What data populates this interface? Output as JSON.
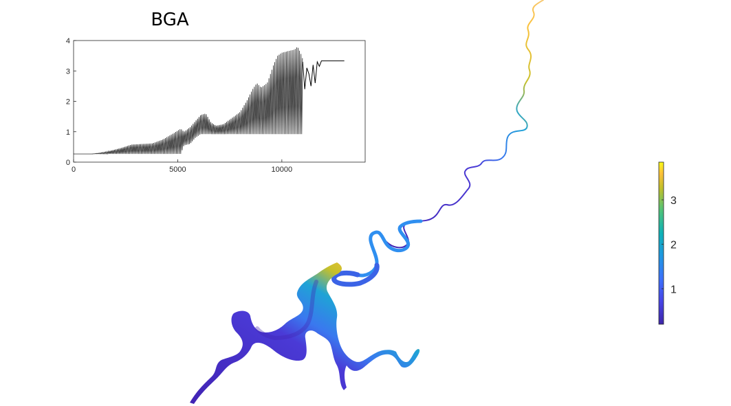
{
  "chart_data": [
    {
      "type": "line",
      "title": "BGA",
      "xlabel": "",
      "ylabel": "",
      "xlim": [
        0,
        14000
      ],
      "ylim": [
        0,
        4
      ],
      "xticks": [
        0,
        5000,
        10000
      ],
      "yticks": [
        0,
        1,
        2,
        3,
        4
      ],
      "grid": false,
      "series": [
        {
          "style": "oscillating band",
          "color": "#000000",
          "x": [
            0,
            900,
            1500,
            2200,
            2800,
            3300,
            3800,
            4300,
            4800,
            5150,
            5300,
            5600,
            5850,
            6100,
            6350,
            6600,
            6850,
            7200,
            7600,
            8000,
            8300,
            8600,
            8800,
            9000,
            9300,
            9600,
            9800,
            10000,
            10300,
            10600,
            10750,
            10900,
            11000
          ],
          "upper": [
            0.27,
            0.27,
            0.33,
            0.45,
            0.58,
            0.6,
            0.62,
            0.75,
            0.95,
            1.1,
            1.0,
            1.15,
            1.35,
            1.55,
            1.6,
            1.3,
            1.2,
            1.25,
            1.45,
            1.65,
            2.0,
            2.4,
            2.6,
            2.45,
            2.6,
            3.2,
            3.5,
            3.6,
            3.65,
            3.7,
            3.8,
            3.6,
            3.4
          ],
          "lower": [
            0.27,
            0.27,
            0.27,
            0.27,
            0.27,
            0.27,
            0.27,
            0.27,
            0.27,
            0.27,
            0.55,
            0.6,
            0.8,
            0.92,
            0.92,
            0.92,
            0.92,
            0.92,
            0.92,
            0.92,
            0.92,
            0.92,
            0.92,
            0.92,
            0.92,
            0.92,
            0.92,
            0.92,
            0.92,
            0.92,
            0.92,
            0.92,
            0.92
          ]
        },
        {
          "style": "line",
          "color": "#000000",
          "x": [
            11000,
            11100,
            11200,
            11300,
            11400,
            11500,
            11600,
            11700,
            11800,
            11900,
            12000,
            12500,
            13000
          ],
          "y": [
            3.3,
            2.4,
            3.1,
            2.9,
            2.5,
            3.2,
            2.6,
            3.3,
            3.15,
            3.33,
            3.33,
            3.33,
            3.33
          ]
        }
      ]
    },
    {
      "type": "heatmap",
      "colormap": "parula",
      "clim": [
        0.2,
        3.85
      ],
      "colorbar_ticks": [
        1,
        2,
        3
      ],
      "colorbar_placement": "right"
    }
  ]
}
